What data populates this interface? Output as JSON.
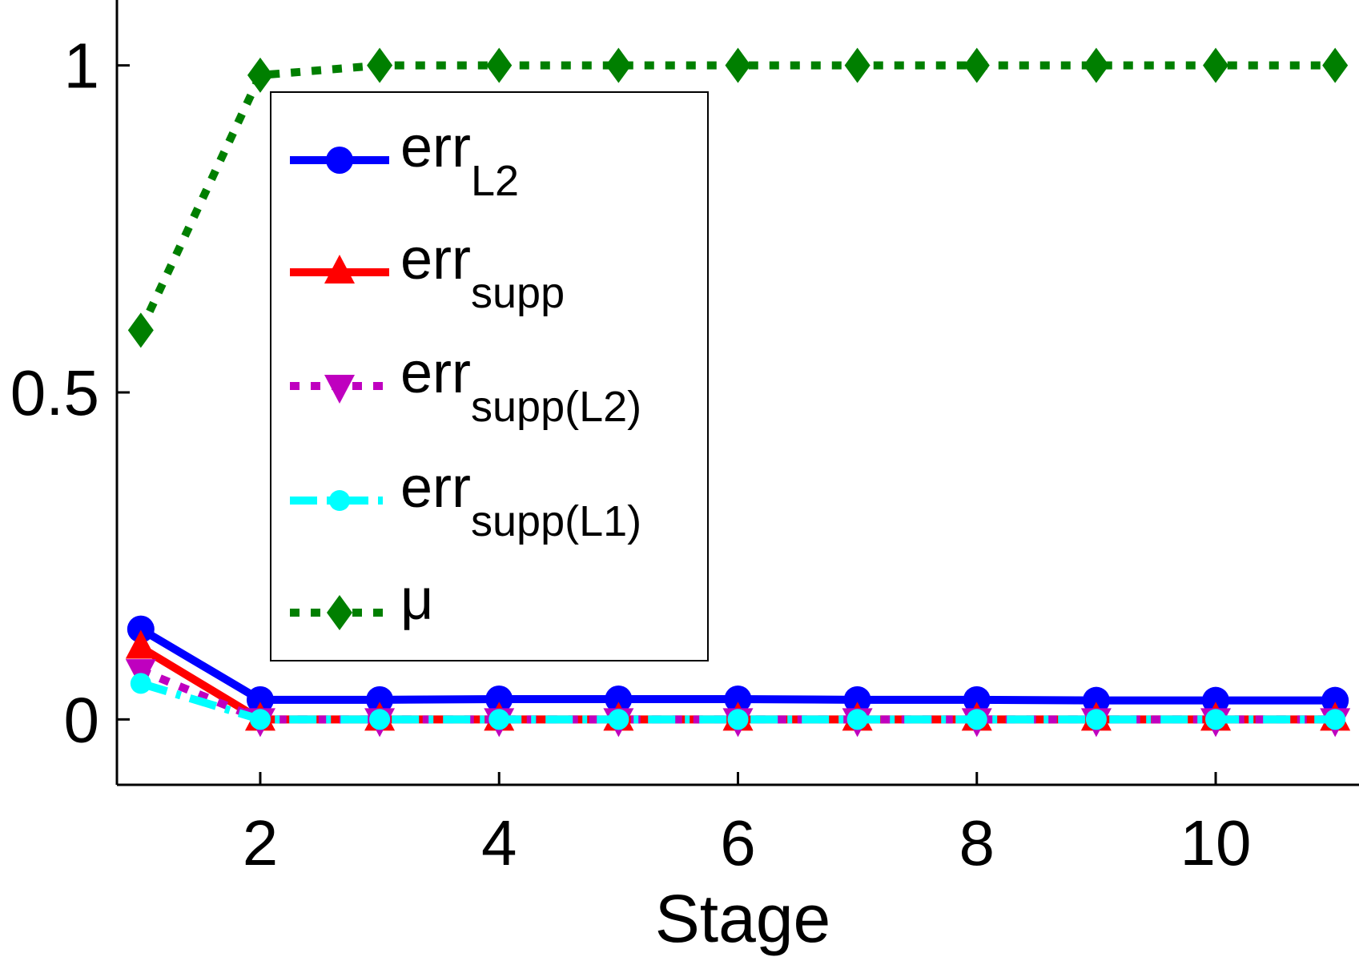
{
  "chart_data": {
    "type": "line",
    "title": "",
    "xlabel": "Stage",
    "ylabel": "",
    "xlim": [
      0.8,
      11.2
    ],
    "ylim": [
      -0.1,
      1.1
    ],
    "xticks": [
      2,
      4,
      6,
      8,
      10
    ],
    "yticks": [
      0,
      0.5,
      1
    ],
    "ytick_labels": [
      "0",
      "0.5",
      "1"
    ],
    "grid": false,
    "legend_position": "upper-left",
    "x": [
      1,
      2,
      3,
      4,
      5,
      6,
      7,
      8,
      9,
      10,
      11
    ],
    "series": [
      {
        "name": "err_L2",
        "base": "err",
        "sub": "L2",
        "color": "#0000ff",
        "line": "solid",
        "marker": "circle",
        "values": [
          0.138,
          0.03,
          0.03,
          0.031,
          0.031,
          0.031,
          0.03,
          0.03,
          0.029,
          0.029,
          0.029
        ]
      },
      {
        "name": "err_supp",
        "base": "err",
        "sub": "supp",
        "color": "#ff0000",
        "line": "solid",
        "marker": "triangle-up",
        "values": [
          0.11,
          0,
          0,
          0,
          0,
          0,
          0,
          0,
          0,
          0,
          0
        ]
      },
      {
        "name": "err_supp(L2)",
        "base": "err",
        "sub": "supp(L2)",
        "color": "#bf00bf",
        "line": "dotted",
        "marker": "triangle-down",
        "values": [
          0.075,
          0,
          0,
          0,
          0,
          0,
          0,
          0,
          0,
          0,
          0
        ]
      },
      {
        "name": "err_supp(L1)",
        "base": "err",
        "sub": "supp(L1)",
        "color": "#00ffff",
        "line": "dashdot",
        "marker": "circle-small",
        "values": [
          0.055,
          0,
          0,
          0,
          0,
          0,
          0,
          0,
          0,
          0,
          0
        ]
      },
      {
        "name": "μ",
        "base": "μ",
        "sub": "",
        "color": "#007f00",
        "line": "dotted",
        "marker": "diamond",
        "values": [
          0.595,
          0.985,
          1.0,
          1.0,
          1.0,
          1.0,
          1.0,
          1.0,
          1.0,
          1.0,
          1.0
        ]
      }
    ]
  }
}
